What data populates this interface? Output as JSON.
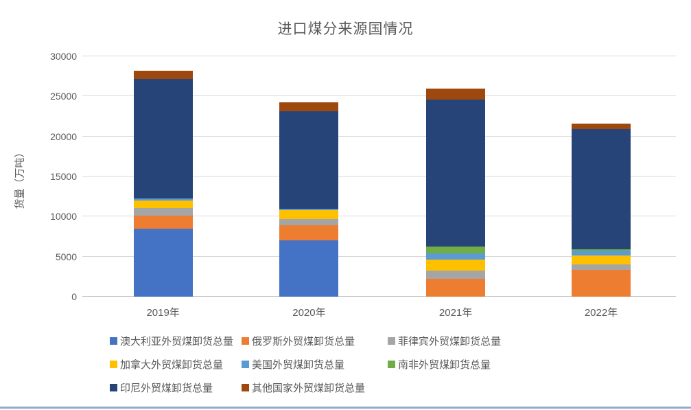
{
  "chart_data": {
    "type": "bar",
    "subtype": "stacked",
    "title": "进口煤分来源国情况",
    "ylabel": "货量（万吨）",
    "xlabel": "",
    "categories": [
      "2019年",
      "2020年",
      "2021年",
      "2022年"
    ],
    "series": [
      {
        "name": "澳大利亚外贸煤卸货总量",
        "color": "#4472C4",
        "values": [
          8500,
          7000,
          0,
          0
        ]
      },
      {
        "name": "俄罗斯外贸煤卸货总量",
        "color": "#ED7D31",
        "values": [
          1600,
          1950,
          2250,
          3330
        ]
      },
      {
        "name": "菲律宾外贸煤卸货总量",
        "color": "#A5A5A5",
        "values": [
          1000,
          750,
          1050,
          660
        ]
      },
      {
        "name": "加拿大外贸煤卸货总量",
        "color": "#FFC000",
        "values": [
          900,
          1080,
          1300,
          1140
        ]
      },
      {
        "name": "美国外贸煤卸货总量",
        "color": "#5B9BD5",
        "values": [
          250,
          230,
          770,
          580
        ]
      },
      {
        "name": "南非外贸煤卸货总量",
        "color": "#70AD47",
        "values": [
          0,
          0,
          850,
          200
        ]
      },
      {
        "name": "印尼外贸煤卸货总量",
        "color": "#264478",
        "values": [
          14900,
          12150,
          18370,
          14970
        ]
      },
      {
        "name": "其他国家外贸煤卸货总量",
        "color": "#9E480E",
        "values": [
          1050,
          1090,
          1380,
          710
        ]
      }
    ],
    "ylim": [
      0,
      30000
    ],
    "ytick_step": 5000,
    "yticks": [
      "0",
      "5000",
      "10000",
      "15000",
      "20000",
      "25000",
      "30000"
    ],
    "grid": true,
    "legend_position": "bottom",
    "legend_rows": [
      [
        0,
        1,
        2
      ],
      [
        3,
        4,
        5
      ],
      [
        6,
        7
      ]
    ],
    "colors": {
      "title_text": "#595959",
      "axis_text": "#595959",
      "gridline": "#D9D9D9",
      "bottom_border": "#93A9CD"
    }
  }
}
